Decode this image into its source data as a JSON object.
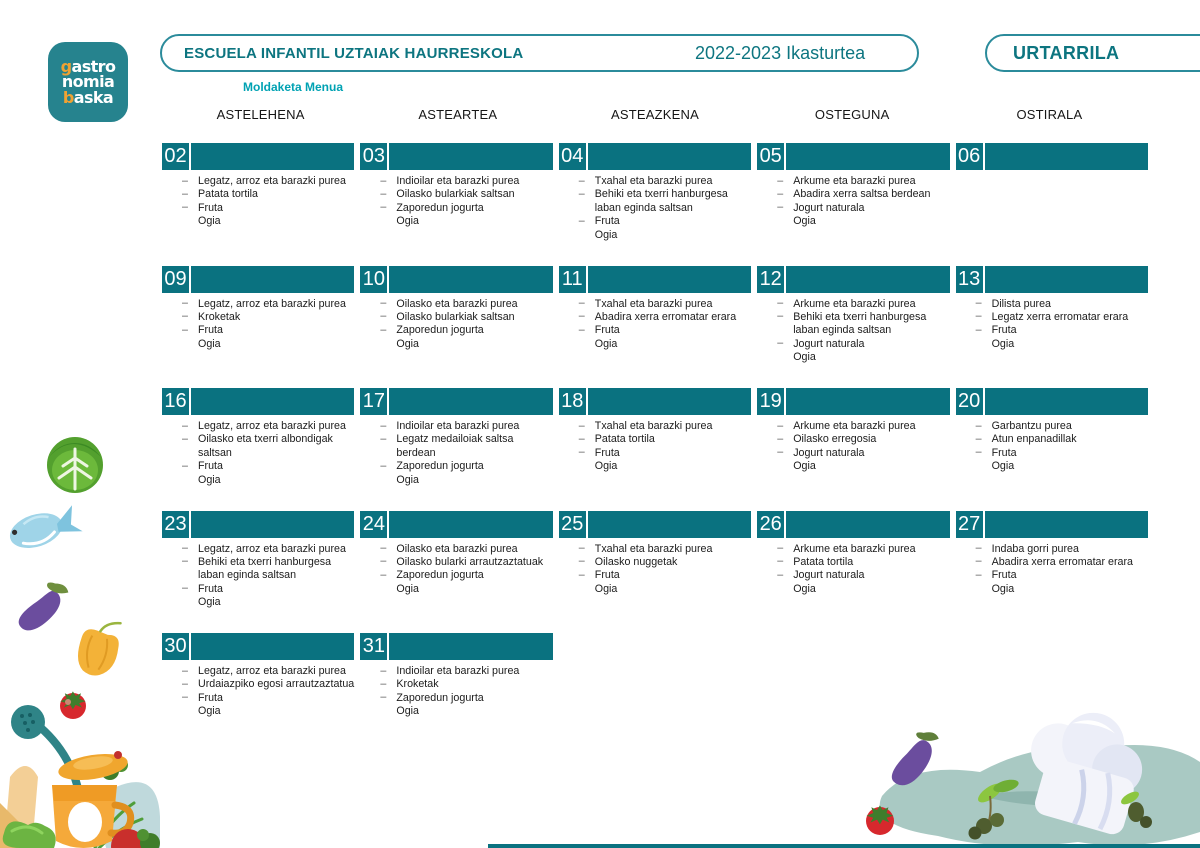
{
  "colors": {
    "teal": "#0a7280",
    "teal-text": "#0d7580",
    "pill-border": "#2b8b9b",
    "logo-teal": "#26838e",
    "cyan": "#00a2b3",
    "orange": "#f0a232"
  },
  "logo": {
    "l1a": "g",
    "l1b": "astro",
    "l2a": "",
    "l2b": "nomia",
    "l3a": "b",
    "l3b": "aska"
  },
  "header": {
    "school": "ESCUELA INFANTIL UZTAIAK HAURRESKOLA",
    "year": "2022-2023 Ikasturtea",
    "month": "URTARRILA",
    "subtitle": "Moldaketa Menua"
  },
  "weekdays": [
    "ASTELEHENA",
    "ASTEARTEA",
    "ASTEAZKENA",
    "OSTEGUNA",
    "OSTIRALA"
  ],
  "calendar": {
    "weeks": [
      [
        {
          "num": "02",
          "dishes": [
            "Legatz, arroz eta barazki purea",
            "Patata tortila",
            "Fruta"
          ],
          "plain": "Ogia"
        },
        {
          "num": "03",
          "dishes": [
            "Indioilar eta barazki purea",
            "Oilasko bularkiak saltsan",
            "Zaporedun jogurta"
          ],
          "plain": "Ogia"
        },
        {
          "num": "04",
          "dishes": [
            "Txahal eta barazki purea",
            "Behiki eta txerri hanburgesa laban eginda saltsan",
            "Fruta"
          ],
          "plain": "Ogia"
        },
        {
          "num": "05",
          "dishes": [
            "Arkume eta barazki purea",
            "Abadira xerra saltsa berdean",
            "Jogurt naturala"
          ],
          "plain": "Ogia"
        },
        {
          "num": "06",
          "dishes": [],
          "plain": ""
        }
      ],
      [
        {
          "num": "09",
          "dishes": [
            "Legatz, arroz eta barazki purea",
            "Kroketak",
            "Fruta"
          ],
          "plain": "Ogia"
        },
        {
          "num": "10",
          "dishes": [
            "Oilasko eta barazki purea",
            "Oilasko bularkiak saltsan",
            "Zaporedun jogurta"
          ],
          "plain": "Ogia"
        },
        {
          "num": "11",
          "dishes": [
            "Txahal eta barazki purea",
            "Abadira xerra erromatar erara",
            "Fruta"
          ],
          "plain": "Ogia"
        },
        {
          "num": "12",
          "dishes": [
            "Arkume eta barazki purea",
            "Behiki eta txerri hanburgesa laban eginda saltsan",
            "Jogurt naturala"
          ],
          "plain": "Ogia"
        },
        {
          "num": "13",
          "dishes": [
            "Dilista purea",
            "Legatz xerra erromatar erara",
            "Fruta"
          ],
          "plain": "Ogia"
        }
      ],
      [
        {
          "num": "16",
          "dishes": [
            "Legatz, arroz eta barazki purea",
            "Oilasko eta txerri albondigak saltsan",
            "Fruta"
          ],
          "plain": "Ogia"
        },
        {
          "num": "17",
          "dishes": [
            "Indioilar eta barazki purea",
            "Legatz medailoiak saltsa berdean",
            "Zaporedun jogurta"
          ],
          "plain": "Ogia"
        },
        {
          "num": "18",
          "dishes": [
            "Txahal eta barazki purea",
            "Patata tortila",
            "Fruta"
          ],
          "plain": "Ogia"
        },
        {
          "num": "19",
          "dishes": [
            "Arkume eta barazki purea",
            "Oilasko erregosia",
            "Jogurt naturala"
          ],
          "plain": "Ogia"
        },
        {
          "num": "20",
          "dishes": [
            "Garbantzu purea",
            "Atun enpanadillak",
            "Fruta"
          ],
          "plain": "Ogia"
        }
      ],
      [
        {
          "num": "23",
          "dishes": [
            "Legatz, arroz eta barazki purea",
            "Behiki eta txerri hanburgesa laban eginda saltsan",
            "Fruta"
          ],
          "plain": "Ogia"
        },
        {
          "num": "24",
          "dishes": [
            "Oilasko eta barazki purea",
            "Oilasko bularki arrautzaztatuak",
            "Zaporedun jogurta"
          ],
          "plain": "Ogia"
        },
        {
          "num": "25",
          "dishes": [
            "Txahal eta barazki purea",
            "Oilasko nuggetak",
            "Fruta"
          ],
          "plain": "Ogia"
        },
        {
          "num": "26",
          "dishes": [
            "Arkume eta barazki purea",
            "Patata tortila",
            "Jogurt naturala"
          ],
          "plain": "Ogia"
        },
        {
          "num": "27",
          "dishes": [
            "Indaba gorri purea",
            "Abadira xerra erromatar erara",
            "Fruta"
          ],
          "plain": "Ogia"
        }
      ],
      [
        {
          "num": "30",
          "dishes": [
            "Legatz, arroz eta barazki purea",
            "Urdaiazpiko egosi arrautzaztatua",
            "Fruta"
          ],
          "plain": "Ogia"
        },
        {
          "num": "31",
          "dishes": [
            "Indioilar eta barazki purea",
            "Kroketak",
            "Zaporedun jogurta"
          ],
          "plain": "Ogia"
        },
        null,
        null,
        null
      ]
    ]
  }
}
